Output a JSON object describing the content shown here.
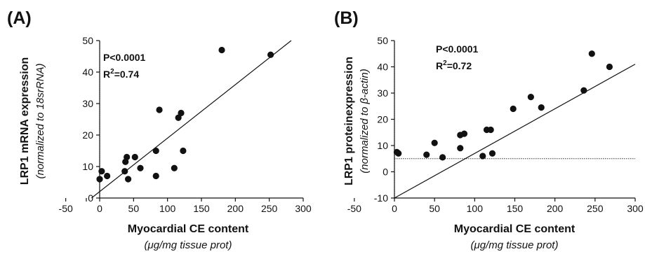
{
  "chart_data": [
    {
      "type": "scatter",
      "panel_label": "(A)",
      "xlabel": "Myocardial CE content",
      "xlabel_unit": "(μg/mg tissue prot)",
      "ylabel": "LRP1 mRNA expression",
      "ylabel_unit": "(normalized to 18srRNA)",
      "xlim": [
        -50,
        300
      ],
      "ylim": [
        0,
        50
      ],
      "x_ticks": [
        "-50",
        "0",
        "50",
        "100",
        "150",
        "200",
        "250",
        "300"
      ],
      "y_ticks": [
        "0",
        "10",
        "20",
        "30",
        "40",
        "50"
      ],
      "annotation_p": "P<0.0001",
      "annotation_r2_prefix": "R",
      "annotation_r2_sup": "2",
      "annotation_r2_value": "=0.74",
      "reference_lines": {
        "x": 0,
        "y": null
      },
      "regression_line": {
        "x": [
          -12,
          300
        ],
        "y": [
          0,
          53
        ]
      },
      "points": [
        {
          "x": 0,
          "y": 6
        },
        {
          "x": 3,
          "y": 8.5
        },
        {
          "x": 11,
          "y": 7
        },
        {
          "x": 37,
          "y": 8.5
        },
        {
          "x": 38,
          "y": 11.5
        },
        {
          "x": 40,
          "y": 13
        },
        {
          "x": 42,
          "y": 6
        },
        {
          "x": 52,
          "y": 13
        },
        {
          "x": 60,
          "y": 9.5
        },
        {
          "x": 83,
          "y": 15
        },
        {
          "x": 83,
          "y": 7
        },
        {
          "x": 88,
          "y": 28
        },
        {
          "x": 110,
          "y": 9.5
        },
        {
          "x": 116,
          "y": 25.5
        },
        {
          "x": 120,
          "y": 27
        },
        {
          "x": 123,
          "y": 15
        },
        {
          "x": 180,
          "y": 47
        },
        {
          "x": 252,
          "y": 45.5
        }
      ]
    },
    {
      "type": "scatter",
      "panel_label": "(B)",
      "xlabel": "Myocardial CE content",
      "xlabel_unit": "(μg/mg tissue prot)",
      "ylabel": "LRP1 proteinexpression",
      "ylabel_unit_prefix": "(normalized to ",
      "ylabel_unit_greek": "β",
      "ylabel_unit_suffix": "-actin)",
      "xlim": [
        -50,
        300
      ],
      "ylim": [
        -10,
        50
      ],
      "x_ticks": [
        "-50",
        "0",
        "50",
        "100",
        "150",
        "200",
        "250",
        "300"
      ],
      "y_ticks": [
        "-10",
        "0",
        "10",
        "20",
        "30",
        "40",
        "50"
      ],
      "annotation_p": "P<0.0001",
      "annotation_r2_prefix": "R",
      "annotation_r2_sup": "2",
      "annotation_r2_value": "=0.72",
      "reference_lines": {
        "x": 0,
        "y": 5
      },
      "regression_line": {
        "x": [
          0,
          300
        ],
        "y": [
          -10,
          41
        ]
      },
      "points": [
        {
          "x": 3,
          "y": 7.5
        },
        {
          "x": 5,
          "y": 7
        },
        {
          "x": 40,
          "y": 6.5
        },
        {
          "x": 50,
          "y": 11
        },
        {
          "x": 60,
          "y": 5.5
        },
        {
          "x": 82,
          "y": 9
        },
        {
          "x": 82,
          "y": 14
        },
        {
          "x": 87,
          "y": 14.5
        },
        {
          "x": 110,
          "y": 6
        },
        {
          "x": 115,
          "y": 16
        },
        {
          "x": 120,
          "y": 16
        },
        {
          "x": 122,
          "y": 7
        },
        {
          "x": 148,
          "y": 24
        },
        {
          "x": 170,
          "y": 28.5
        },
        {
          "x": 183,
          "y": 24.5
        },
        {
          "x": 236,
          "y": 31
        },
        {
          "x": 246,
          "y": 45
        },
        {
          "x": 268,
          "y": 40
        }
      ]
    }
  ]
}
